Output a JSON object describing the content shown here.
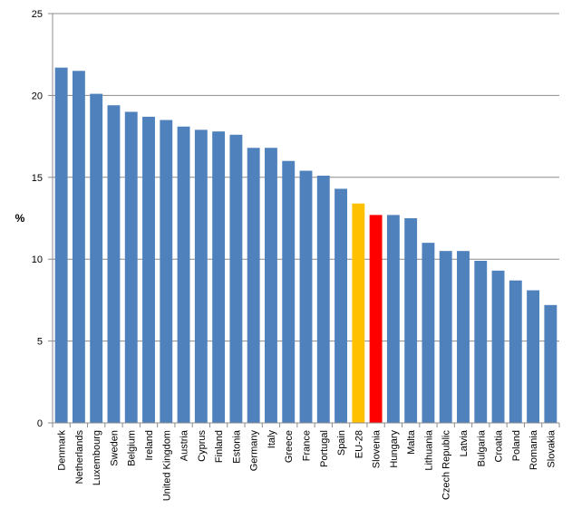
{
  "chart_data": {
    "type": "bar",
    "title": "",
    "xlabel": "",
    "ylabel": "%",
    "ylim": [
      0,
      25
    ],
    "yticks": [
      0,
      5,
      10,
      15,
      20,
      25
    ],
    "grid": true,
    "legend": "none",
    "default_color": "#4f81bd",
    "highlight_colors": {
      "EU-28": "#ffc000",
      "Slovenia": "#ff0000"
    },
    "categories": [
      "Denmark",
      "Netherlands",
      "Luxembourg",
      "Sweden",
      "Belgium",
      "Ireland",
      "United Kingdom",
      "Austria",
      "Cyprus",
      "Finland",
      "Estonia",
      "Germany",
      "Italy",
      "Greece",
      "France",
      "Portugal",
      "Spain",
      "EU-28",
      "Slovenia",
      "Hungary",
      "Malta",
      "Lithuania",
      "Czech Republic",
      "Latvia",
      "Bulgaria",
      "Croatia",
      "Poland",
      "Romania",
      "Slovakia"
    ],
    "values": [
      21.7,
      21.5,
      20.1,
      19.4,
      19.0,
      18.7,
      18.5,
      18.1,
      17.9,
      17.8,
      17.6,
      16.8,
      16.8,
      16.0,
      15.4,
      15.1,
      14.3,
      13.4,
      12.7,
      12.7,
      12.5,
      11.0,
      10.5,
      10.5,
      9.9,
      9.3,
      8.7,
      8.1,
      7.2
    ]
  }
}
